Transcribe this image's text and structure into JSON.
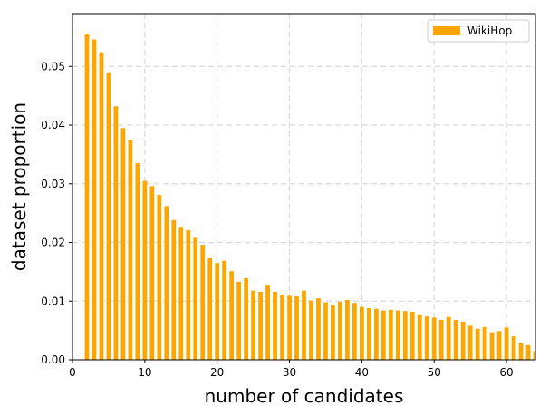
{
  "chart_data": {
    "type": "bar",
    "title": "",
    "xlabel": "number of candidates",
    "ylabel": "dataset proportion",
    "xlim": [
      0,
      64
    ],
    "ylim": [
      0,
      0.059
    ],
    "xticks": [
      0,
      10,
      20,
      30,
      40,
      50,
      60
    ],
    "yticks": [
      0.0,
      0.01,
      0.02,
      0.03,
      0.04,
      0.05
    ],
    "xtick_labels": [
      "0",
      "10",
      "20",
      "30",
      "40",
      "50",
      "60"
    ],
    "ytick_labels": [
      "0.00",
      "0.01",
      "0.02",
      "0.03",
      "0.04",
      "0.05"
    ],
    "grid": true,
    "legend_position": "top-right",
    "bar_color": "#ffa500",
    "series": [
      {
        "name": "WikiHop",
        "x": [
          2,
          3,
          4,
          5,
          6,
          7,
          8,
          9,
          10,
          11,
          12,
          13,
          14,
          15,
          16,
          17,
          18,
          19,
          20,
          21,
          22,
          23,
          24,
          25,
          26,
          27,
          28,
          29,
          30,
          31,
          32,
          33,
          34,
          35,
          36,
          37,
          38,
          39,
          40,
          41,
          42,
          43,
          44,
          45,
          46,
          47,
          48,
          49,
          50,
          51,
          52,
          53,
          54,
          55,
          56,
          57,
          58,
          59,
          60,
          61,
          62,
          63,
          64
        ],
        "values": [
          0.0556,
          0.0546,
          0.0524,
          0.049,
          0.0432,
          0.0395,
          0.0375,
          0.0335,
          0.0305,
          0.0296,
          0.0281,
          0.0262,
          0.0238,
          0.0225,
          0.0221,
          0.0208,
          0.0196,
          0.0173,
          0.0165,
          0.0169,
          0.0151,
          0.0133,
          0.0139,
          0.0118,
          0.0116,
          0.0127,
          0.0116,
          0.0111,
          0.0109,
          0.0108,
          0.0118,
          0.0101,
          0.0105,
          0.0098,
          0.0094,
          0.0099,
          0.0102,
          0.0097,
          0.009,
          0.0088,
          0.0087,
          0.0084,
          0.0085,
          0.0084,
          0.0083,
          0.0082,
          0.0076,
          0.0074,
          0.0072,
          0.0068,
          0.0073,
          0.0068,
          0.0065,
          0.0058,
          0.0053,
          0.0056,
          0.0047,
          0.0049,
          0.0055,
          0.004,
          0.0028,
          0.0025,
          0.0015
        ]
      }
    ]
  }
}
